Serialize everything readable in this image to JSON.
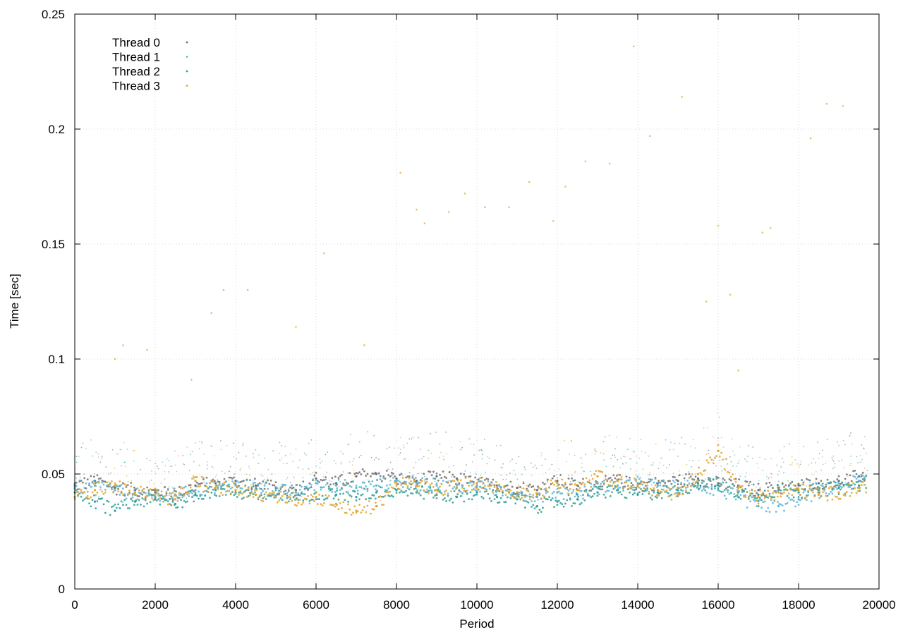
{
  "chart_data": {
    "type": "scatter",
    "title": "",
    "xlabel": "Period",
    "ylabel": "Time [sec]",
    "xlim": [
      0,
      20000
    ],
    "ylim": [
      0,
      0.25
    ],
    "xticks": [
      "0",
      "2000",
      "4000",
      "6000",
      "8000",
      "10000",
      "12000",
      "14000",
      "16000",
      "18000",
      "20000"
    ],
    "yticks": [
      "0",
      "0.05",
      "0.1",
      "0.15",
      "0.2",
      "0.25"
    ],
    "grid": true,
    "legend_position": "top-left",
    "series": [
      {
        "name": "Thread 0",
        "color": "#6e6e6e",
        "x": [
          0,
          500,
          1000,
          1500,
          2000,
          2500,
          3000,
          3500,
          4000,
          4500,
          5000,
          5500,
          6000,
          6500,
          7000,
          7500,
          8000,
          8500,
          9000,
          9500,
          10000,
          10500,
          11000,
          11500,
          12000,
          12500,
          13000,
          13500,
          14000,
          14500,
          15000,
          15500,
          16000,
          16500,
          17000,
          17500,
          18000,
          18500,
          19000,
          19500
        ],
        "y": [
          0.045,
          0.047,
          0.044,
          0.043,
          0.042,
          0.041,
          0.045,
          0.046,
          0.047,
          0.045,
          0.044,
          0.043,
          0.048,
          0.046,
          0.049,
          0.05,
          0.048,
          0.047,
          0.049,
          0.048,
          0.046,
          0.045,
          0.044,
          0.043,
          0.047,
          0.045,
          0.046,
          0.047,
          0.045,
          0.046,
          0.047,
          0.048,
          0.046,
          0.045,
          0.043,
          0.044,
          0.045,
          0.046,
          0.047,
          0.049
        ]
      },
      {
        "name": "Thread 1",
        "color": "#5ab4d6",
        "x": [
          0,
          500,
          1000,
          1500,
          2000,
          2500,
          3000,
          3500,
          4000,
          4500,
          5000,
          5500,
          6000,
          6500,
          7000,
          7500,
          8000,
          8500,
          9000,
          9500,
          10000,
          10500,
          11000,
          11500,
          12000,
          12500,
          13000,
          13500,
          14000,
          14500,
          15000,
          15500,
          16000,
          16500,
          17000,
          17500,
          18000,
          18500,
          19000,
          19500
        ],
        "y": [
          0.044,
          0.045,
          0.043,
          0.041,
          0.04,
          0.041,
          0.043,
          0.044,
          0.045,
          0.044,
          0.043,
          0.042,
          0.046,
          0.045,
          0.044,
          0.045,
          0.047,
          0.046,
          0.045,
          0.044,
          0.045,
          0.043,
          0.042,
          0.04,
          0.042,
          0.041,
          0.044,
          0.045,
          0.046,
          0.045,
          0.044,
          0.045,
          0.043,
          0.04,
          0.036,
          0.036,
          0.039,
          0.042,
          0.045,
          0.047
        ]
      },
      {
        "name": "Thread 2",
        "color": "#2e9e99",
        "x": [
          0,
          500,
          1000,
          1500,
          2000,
          2500,
          3000,
          3500,
          4000,
          4500,
          5000,
          5500,
          6000,
          6500,
          7000,
          7500,
          8000,
          8500,
          9000,
          9500,
          10000,
          10500,
          11000,
          11500,
          12000,
          12500,
          13000,
          13500,
          14000,
          14500,
          15000,
          15500,
          16000,
          16500,
          17000,
          17500,
          18000,
          18500,
          19000,
          19500
        ],
        "y": [
          0.042,
          0.038,
          0.034,
          0.038,
          0.039,
          0.037,
          0.041,
          0.043,
          0.042,
          0.041,
          0.04,
          0.039,
          0.042,
          0.041,
          0.04,
          0.042,
          0.043,
          0.042,
          0.041,
          0.04,
          0.042,
          0.04,
          0.039,
          0.036,
          0.038,
          0.039,
          0.042,
          0.043,
          0.041,
          0.042,
          0.043,
          0.046,
          0.045,
          0.042,
          0.041,
          0.043,
          0.042,
          0.043,
          0.044,
          0.045
        ]
      },
      {
        "name": "Thread 3",
        "color": "#e0a52a",
        "x": [
          0,
          500,
          1000,
          1500,
          2000,
          2500,
          3000,
          3500,
          4000,
          4500,
          5000,
          5500,
          6000,
          6500,
          7000,
          7500,
          8000,
          8500,
          9000,
          9500,
          10000,
          10500,
          11000,
          11500,
          12000,
          12500,
          13000,
          13500,
          14000,
          14500,
          15000,
          15500,
          16000,
          16500,
          17000,
          17500,
          18000,
          18500,
          19000,
          19500
        ],
        "y": [
          0.04,
          0.043,
          0.045,
          0.042,
          0.041,
          0.039,
          0.047,
          0.044,
          0.043,
          0.041,
          0.04,
          0.039,
          0.04,
          0.037,
          0.034,
          0.036,
          0.046,
          0.045,
          0.043,
          0.045,
          0.046,
          0.044,
          0.042,
          0.041,
          0.046,
          0.043,
          0.049,
          0.047,
          0.045,
          0.043,
          0.041,
          0.05,
          0.06,
          0.044,
          0.04,
          0.042,
          0.043,
          0.041,
          0.042,
          0.044
        ]
      }
    ],
    "outliers": {
      "name": "Thread 3",
      "x": [
        1000,
        1200,
        1800,
        2900,
        3400,
        3700,
        4300,
        5500,
        6200,
        7200,
        8100,
        8500,
        8700,
        9300,
        9700,
        10200,
        10800,
        11300,
        11900,
        12200,
        12700,
        13300,
        13900,
        14300,
        15100,
        15700,
        16000,
        16300,
        16500,
        17100,
        17300,
        18300,
        18700,
        19100
      ],
      "y": [
        0.1,
        0.106,
        0.104,
        0.091,
        0.12,
        0.13,
        0.13,
        0.114,
        0.146,
        0.106,
        0.181,
        0.165,
        0.159,
        0.164,
        0.172,
        0.166,
        0.166,
        0.177,
        0.16,
        0.175,
        0.186,
        0.185,
        0.236,
        0.197,
        0.214,
        0.125,
        0.158,
        0.128,
        0.095,
        0.155,
        0.157,
        0.196,
        0.211,
        0.21
      ]
    }
  }
}
